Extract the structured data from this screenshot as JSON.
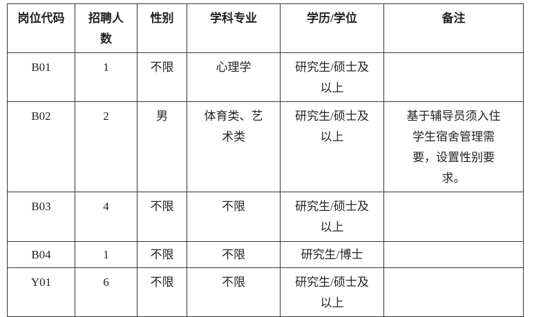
{
  "table": {
    "headers": [
      "岗位代码",
      "招聘人数",
      "性别",
      "学科专业",
      "学历/学位",
      "备注"
    ],
    "rows": [
      [
        "B01",
        "1",
        "不限",
        "心理学",
        "研究生/硕士及以上"
      ],
      [
        "B02",
        "2",
        "男",
        "体育类、艺术类",
        "研究生/硕士及以上",
        "基于辅导员须入住学生宿舍管理需要，设置性别要求。"
      ],
      [
        "B03",
        "4",
        "不限",
        "不限",
        "研究生/硕士及以上"
      ],
      [
        "B04",
        "1",
        "不限",
        "不限",
        "研究生/博士"
      ],
      [
        "Y01",
        "6",
        "不限",
        "不限",
        "研究生/硕士及以上"
      ]
    ]
  }
}
